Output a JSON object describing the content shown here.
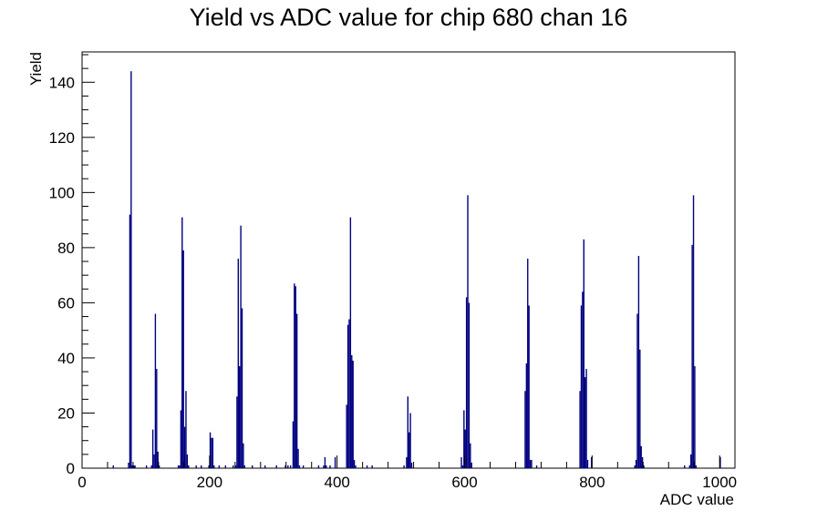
{
  "chart_data": {
    "type": "bar",
    "title": "Yield vs ADC value for chip 680 chan 16",
    "xlabel": "ADC value",
    "ylabel": "Yield",
    "xlim": [
      0,
      1024
    ],
    "ylim": [
      0,
      151
    ],
    "x_ticks": [
      0,
      200,
      400,
      600,
      800,
      1000
    ],
    "y_ticks": [
      0,
      20,
      40,
      60,
      80,
      100,
      120,
      140
    ],
    "grid": false,
    "legend": "none",
    "bin_width": 2,
    "color": "#000080",
    "bins": [
      [
        48,
        1
      ],
      [
        72,
        2
      ],
      [
        74,
        92
      ],
      [
        76,
        144
      ],
      [
        78,
        1
      ],
      [
        80,
        1
      ],
      [
        82,
        1
      ],
      [
        100,
        1
      ],
      [
        108,
        1
      ],
      [
        110,
        14
      ],
      [
        112,
        5
      ],
      [
        114,
        56
      ],
      [
        116,
        36
      ],
      [
        118,
        6
      ],
      [
        120,
        1
      ],
      [
        150,
        1
      ],
      [
        152,
        1
      ],
      [
        154,
        21
      ],
      [
        156,
        91
      ],
      [
        158,
        79
      ],
      [
        160,
        15
      ],
      [
        162,
        28
      ],
      [
        164,
        5
      ],
      [
        166,
        1
      ],
      [
        178,
        1
      ],
      [
        186,
        1
      ],
      [
        198,
        1
      ],
      [
        200,
        13
      ],
      [
        202,
        11
      ],
      [
        204,
        11
      ],
      [
        206,
        1
      ],
      [
        214,
        1
      ],
      [
        224,
        1
      ],
      [
        236,
        1
      ],
      [
        240,
        1
      ],
      [
        242,
        26
      ],
      [
        244,
        76
      ],
      [
        246,
        37
      ],
      [
        248,
        88
      ],
      [
        250,
        58
      ],
      [
        252,
        9
      ],
      [
        254,
        1
      ],
      [
        266,
        1
      ],
      [
        286,
        1
      ],
      [
        304,
        1
      ],
      [
        318,
        1
      ],
      [
        322,
        1
      ],
      [
        326,
        1
      ],
      [
        330,
        17
      ],
      [
        332,
        67
      ],
      [
        334,
        66
      ],
      [
        336,
        56
      ],
      [
        338,
        7
      ],
      [
        340,
        1
      ],
      [
        346,
        1
      ],
      [
        370,
        1
      ],
      [
        378,
        1
      ],
      [
        380,
        4
      ],
      [
        382,
        1
      ],
      [
        388,
        1
      ],
      [
        396,
        4
      ],
      [
        414,
        23
      ],
      [
        416,
        52
      ],
      [
        418,
        54
      ],
      [
        420,
        91
      ],
      [
        422,
        41
      ],
      [
        424,
        39
      ],
      [
        426,
        3
      ],
      [
        428,
        1
      ],
      [
        446,
        1
      ],
      [
        454,
        1
      ],
      [
        504,
        1
      ],
      [
        508,
        4
      ],
      [
        510,
        26
      ],
      [
        512,
        13
      ],
      [
        514,
        20
      ],
      [
        516,
        2
      ],
      [
        594,
        4
      ],
      [
        596,
        1
      ],
      [
        598,
        21
      ],
      [
        600,
        14
      ],
      [
        602,
        62
      ],
      [
        604,
        99
      ],
      [
        606,
        60
      ],
      [
        608,
        9
      ],
      [
        610,
        2
      ],
      [
        694,
        28
      ],
      [
        696,
        38
      ],
      [
        698,
        76
      ],
      [
        700,
        59
      ],
      [
        702,
        3
      ],
      [
        704,
        3
      ],
      [
        712,
        1
      ],
      [
        780,
        28
      ],
      [
        782,
        59
      ],
      [
        784,
        64
      ],
      [
        786,
        83
      ],
      [
        788,
        33
      ],
      [
        790,
        36
      ],
      [
        792,
        3
      ],
      [
        798,
        4
      ],
      [
        866,
        1
      ],
      [
        868,
        3
      ],
      [
        870,
        56
      ],
      [
        872,
        77
      ],
      [
        874,
        43
      ],
      [
        876,
        8
      ],
      [
        878,
        4
      ],
      [
        880,
        1
      ],
      [
        944,
        1
      ],
      [
        952,
        1
      ],
      [
        954,
        5
      ],
      [
        956,
        81
      ],
      [
        958,
        99
      ],
      [
        960,
        37
      ],
      [
        962,
        1
      ],
      [
        1000,
        4
      ]
    ]
  }
}
